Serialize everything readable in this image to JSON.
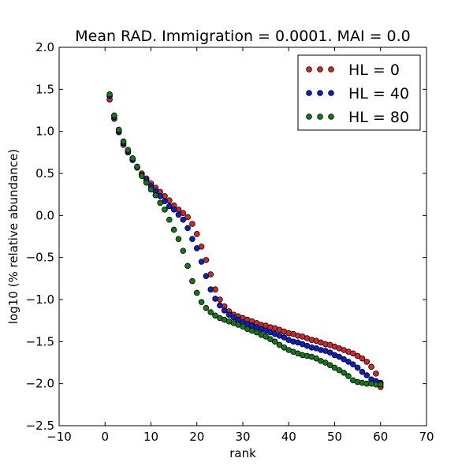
{
  "chart_data": {
    "type": "scatter",
    "title": "Mean RAD. Immigration = 0.0001. MAI = 0.0",
    "xlabel": "rank",
    "ylabel": "log10 (% relative abundance)",
    "xlim": [
      -10,
      70
    ],
    "ylim": [
      -2.5,
      2.0
    ],
    "xticks": [
      "−10",
      "0",
      "10",
      "20",
      "30",
      "40",
      "50",
      "60",
      "70"
    ],
    "yticks": [
      "2.0",
      "1.5",
      "1.0",
      "0.5",
      "0.0",
      "−0.5",
      "−1.0",
      "−1.5",
      "−2.0",
      "−2.5"
    ],
    "grid": false,
    "legend_position": "top-right",
    "series": [
      {
        "name": "HL = 0",
        "color": "#d62728",
        "x": [
          1,
          2,
          3,
          4,
          5,
          6,
          7,
          8,
          9,
          10,
          11,
          12,
          13,
          14,
          15,
          16,
          17,
          18,
          19,
          20,
          21,
          22,
          23,
          24,
          25,
          26,
          27,
          28,
          29,
          30,
          31,
          32,
          33,
          34,
          35,
          36,
          37,
          38,
          39,
          40,
          41,
          42,
          43,
          44,
          45,
          46,
          47,
          48,
          49,
          50,
          51,
          52,
          53,
          54,
          55,
          56,
          57,
          58,
          59,
          60
        ],
        "y": [
          1.38,
          1.15,
          0.99,
          0.84,
          0.75,
          0.66,
          0.57,
          0.5,
          0.44,
          0.38,
          0.33,
          0.28,
          0.23,
          0.18,
          0.12,
          0.07,
          0.03,
          -0.02,
          -0.1,
          -0.22,
          -0.37,
          -0.53,
          -0.7,
          -0.88,
          -1.0,
          -1.08,
          -1.14,
          -1.18,
          -1.2,
          -1.22,
          -1.24,
          -1.26,
          -1.28,
          -1.3,
          -1.31,
          -1.33,
          -1.34,
          -1.36,
          -1.38,
          -1.4,
          -1.41,
          -1.43,
          -1.44,
          -1.46,
          -1.48,
          -1.49,
          -1.51,
          -1.53,
          -1.54,
          -1.56,
          -1.58,
          -1.6,
          -1.62,
          -1.64,
          -1.67,
          -1.7,
          -1.74,
          -1.8,
          -1.88,
          -2.04
        ]
      },
      {
        "name": "HL = 40",
        "color": "#0b1fc9",
        "x": [
          1,
          2,
          3,
          4,
          5,
          6,
          7,
          8,
          9,
          10,
          11,
          12,
          13,
          14,
          15,
          16,
          17,
          18,
          19,
          20,
          21,
          22,
          23,
          24,
          25,
          26,
          27,
          28,
          29,
          30,
          31,
          32,
          33,
          34,
          35,
          36,
          37,
          38,
          39,
          40,
          41,
          42,
          43,
          44,
          45,
          46,
          47,
          48,
          49,
          50,
          51,
          52,
          53,
          54,
          55,
          56,
          57,
          58,
          59,
          60
        ],
        "y": [
          1.42,
          1.17,
          1.0,
          0.86,
          0.76,
          0.66,
          0.57,
          0.48,
          0.42,
          0.35,
          0.29,
          0.23,
          0.17,
          0.11,
          0.07,
          0.01,
          -0.05,
          -0.15,
          -0.28,
          -0.39,
          -0.55,
          -0.72,
          -0.88,
          -0.99,
          -1.07,
          -1.13,
          -1.18,
          -1.21,
          -1.24,
          -1.27,
          -1.29,
          -1.31,
          -1.33,
          -1.35,
          -1.37,
          -1.39,
          -1.41,
          -1.43,
          -1.45,
          -1.48,
          -1.5,
          -1.51,
          -1.53,
          -1.55,
          -1.57,
          -1.58,
          -1.6,
          -1.61,
          -1.63,
          -1.66,
          -1.68,
          -1.71,
          -1.74,
          -1.77,
          -1.81,
          -1.86,
          -1.9,
          -1.95,
          -1.97,
          -1.99
        ]
      },
      {
        "name": "HL = 80",
        "color": "#137a13",
        "x": [
          1,
          2,
          3,
          4,
          5,
          6,
          7,
          8,
          9,
          10,
          11,
          12,
          13,
          14,
          15,
          16,
          17,
          18,
          19,
          20,
          21,
          22,
          23,
          24,
          25,
          26,
          27,
          28,
          29,
          30,
          31,
          32,
          33,
          34,
          35,
          36,
          37,
          38,
          39,
          40,
          41,
          42,
          43,
          44,
          45,
          46,
          47,
          48,
          49,
          50,
          51,
          52,
          53,
          54,
          55,
          56,
          57,
          58,
          59,
          60
        ],
        "y": [
          1.44,
          1.19,
          1.02,
          0.88,
          0.78,
          0.68,
          0.58,
          0.47,
          0.39,
          0.31,
          0.24,
          0.15,
          0.07,
          -0.05,
          -0.17,
          -0.28,
          -0.42,
          -0.6,
          -0.78,
          -0.92,
          -1.03,
          -1.1,
          -1.15,
          -1.19,
          -1.22,
          -1.24,
          -1.26,
          -1.28,
          -1.3,
          -1.32,
          -1.35,
          -1.37,
          -1.39,
          -1.42,
          -1.44,
          -1.47,
          -1.5,
          -1.54,
          -1.57,
          -1.6,
          -1.62,
          -1.64,
          -1.66,
          -1.67,
          -1.68,
          -1.7,
          -1.73,
          -1.75,
          -1.78,
          -1.81,
          -1.84,
          -1.87,
          -1.91,
          -1.96,
          -1.98,
          -1.99,
          -2.0,
          -2.0,
          -2.01,
          -2.01
        ]
      }
    ]
  }
}
